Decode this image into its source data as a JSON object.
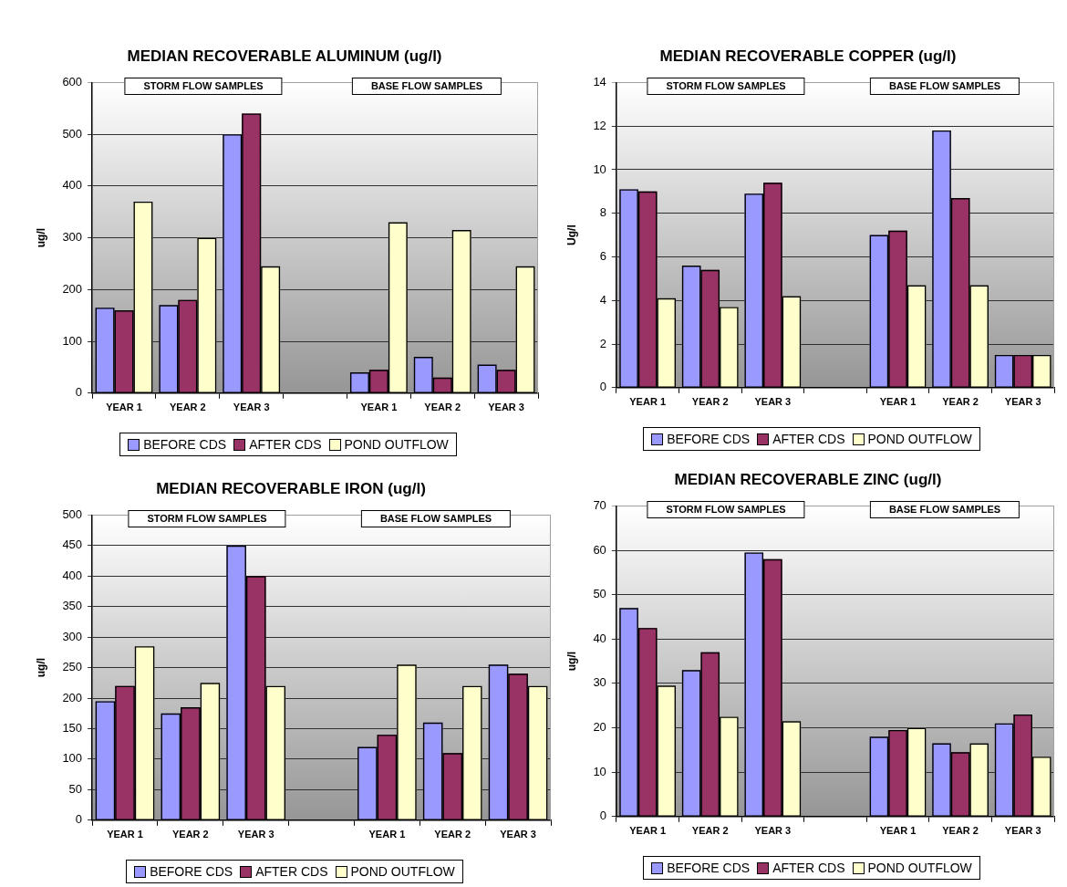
{
  "chart_data": [
    {
      "type": "bar",
      "title": "MEDIAN RECOVERABLE ALUMINUM (ug/l)",
      "ylabel": "ug/l",
      "categories": [
        "YEAR 1",
        "YEAR 2",
        "YEAR 3",
        null,
        "YEAR 1",
        "YEAR 2",
        "YEAR 3"
      ],
      "series": [
        {
          "name": "BEFORE CDS",
          "color": "#9999ff",
          "values": [
            165,
            170,
            500,
            null,
            40,
            70,
            55
          ]
        },
        {
          "name": "AFTER CDS",
          "color": "#993366",
          "values": [
            160,
            180,
            540,
            null,
            45,
            30,
            45
          ]
        },
        {
          "name": "POND OUTFLOW",
          "color": "#ffffcc",
          "values": [
            370,
            300,
            245,
            null,
            330,
            315,
            245
          ]
        }
      ],
      "ylim": [
        0,
        600
      ],
      "yticks": [
        0,
        100,
        200,
        300,
        400,
        500,
        600
      ],
      "grid": "y",
      "legend": "bottom",
      "annotations": [
        "STORM FLOW SAMPLES",
        "BASE FLOW SAMPLES"
      ]
    },
    {
      "type": "bar",
      "title": "MEDIAN RECOVERABLE COPPER (ug/l)",
      "ylabel": "Ug/l",
      "categories": [
        "YEAR 1",
        "YEAR 2",
        "YEAR 3",
        null,
        "YEAR 1",
        "YEAR 2",
        "YEAR 3"
      ],
      "series": [
        {
          "name": "BEFORE CDS",
          "color": "#9999ff",
          "values": [
            9.1,
            5.6,
            8.9,
            null,
            7.0,
            11.8,
            1.5
          ]
        },
        {
          "name": "AFTER CDS",
          "color": "#993366",
          "values": [
            9.0,
            5.4,
            9.4,
            null,
            7.2,
            8.7,
            1.5
          ]
        },
        {
          "name": "POND OUTFLOW",
          "color": "#ffffcc",
          "values": [
            4.1,
            3.7,
            4.2,
            null,
            4.7,
            4.7,
            1.5
          ]
        }
      ],
      "ylim": [
        0,
        14
      ],
      "yticks": [
        0,
        2,
        4,
        6,
        8,
        10,
        12,
        14
      ],
      "grid": "y",
      "legend": "bottom",
      "annotations": [
        "STORM FLOW SAMPLES",
        "BASE FLOW SAMPLES"
      ]
    },
    {
      "type": "bar",
      "title": "MEDIAN RECOVERABLE IRON (ug/l)",
      "ylabel": "ug/l",
      "categories": [
        "YEAR 1",
        "YEAR 2",
        "YEAR 3",
        null,
        "YEAR 1",
        "YEAR 2",
        "YEAR 3"
      ],
      "series": [
        {
          "name": "BEFORE CDS",
          "color": "#9999ff",
          "values": [
            195,
            175,
            450,
            null,
            120,
            160,
            255
          ]
        },
        {
          "name": "AFTER CDS",
          "color": "#993366",
          "values": [
            220,
            185,
            400,
            null,
            140,
            110,
            240
          ]
        },
        {
          "name": "POND OUTFLOW",
          "color": "#ffffcc",
          "values": [
            285,
            225,
            220,
            null,
            255,
            220,
            220
          ]
        }
      ],
      "ylim": [
        0,
        500
      ],
      "yticks": [
        0,
        50,
        100,
        150,
        200,
        250,
        300,
        350,
        400,
        450,
        500
      ],
      "grid": "y",
      "legend": "bottom",
      "annotations": [
        "STORM FLOW SAMPLES",
        "BASE FLOW SAMPLES"
      ]
    },
    {
      "type": "bar",
      "title": "MEDIAN RECOVERABLE ZINC (ug/l)",
      "ylabel": "ug/l",
      "categories": [
        "YEAR 1",
        "YEAR 2",
        "YEAR 3",
        null,
        "YEAR 1",
        "YEAR 2",
        "YEAR 3"
      ],
      "series": [
        {
          "name": "BEFORE CDS",
          "color": "#9999ff",
          "values": [
            47,
            33,
            59.5,
            null,
            18,
            16.5,
            21
          ]
        },
        {
          "name": "AFTER CDS",
          "color": "#993366",
          "values": [
            42.5,
            37,
            58,
            null,
            19.5,
            14.5,
            23
          ]
        },
        {
          "name": "POND OUTFLOW",
          "color": "#ffffcc",
          "values": [
            29.5,
            22.5,
            21.5,
            null,
            20,
            16.5,
            13.5
          ]
        }
      ],
      "ylim": [
        0,
        70
      ],
      "yticks": [
        0,
        10,
        20,
        30,
        40,
        50,
        60,
        70
      ],
      "grid": "y",
      "legend": "bottom",
      "annotations": [
        "STORM FLOW SAMPLES",
        "BASE FLOW SAMPLES"
      ]
    }
  ]
}
